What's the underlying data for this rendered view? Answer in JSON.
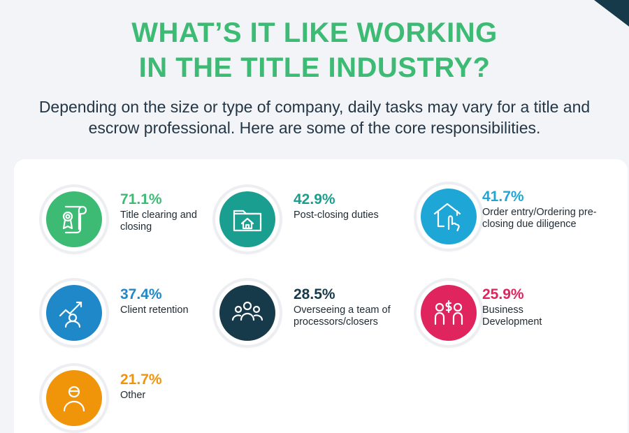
{
  "heading": {
    "line1": "WHAT’S IT LIKE WORKING",
    "line2": "IN THE TITLE INDUSTRY?"
  },
  "subheading": "Depending on the size or type of company, daily tasks may vary for a title and escrow professional. Here are some of the core responsibilities.",
  "stats": [
    {
      "percent": "71.1%",
      "label": "Title clearing and closing",
      "color": "#3dbb74",
      "icon": "certificate-icon"
    },
    {
      "percent": "42.9%",
      "label": "Post-closing duties",
      "color": "#1a9e8f",
      "icon": "folder-home-icon"
    },
    {
      "percent": "41.7%",
      "label": "Order entry/Ordering pre-closing due diligence",
      "color": "#1ea7d6",
      "icon": "house-hand-icon"
    },
    {
      "percent": "37.4%",
      "label": "Client retention",
      "color": "#1e88c8",
      "icon": "person-growth-icon"
    },
    {
      "percent": "28.5%",
      "label": "Overseeing a team of processors/closers",
      "color": "#173a4a",
      "icon": "team-icon"
    },
    {
      "percent": "25.9%",
      "label": "Business Development",
      "color": "#e0245e",
      "icon": "people-dollar-icon"
    },
    {
      "percent": "21.7%",
      "label": "Other",
      "color": "#f0940a",
      "icon": "person-icon"
    }
  ],
  "accent_color": "#173a4a"
}
